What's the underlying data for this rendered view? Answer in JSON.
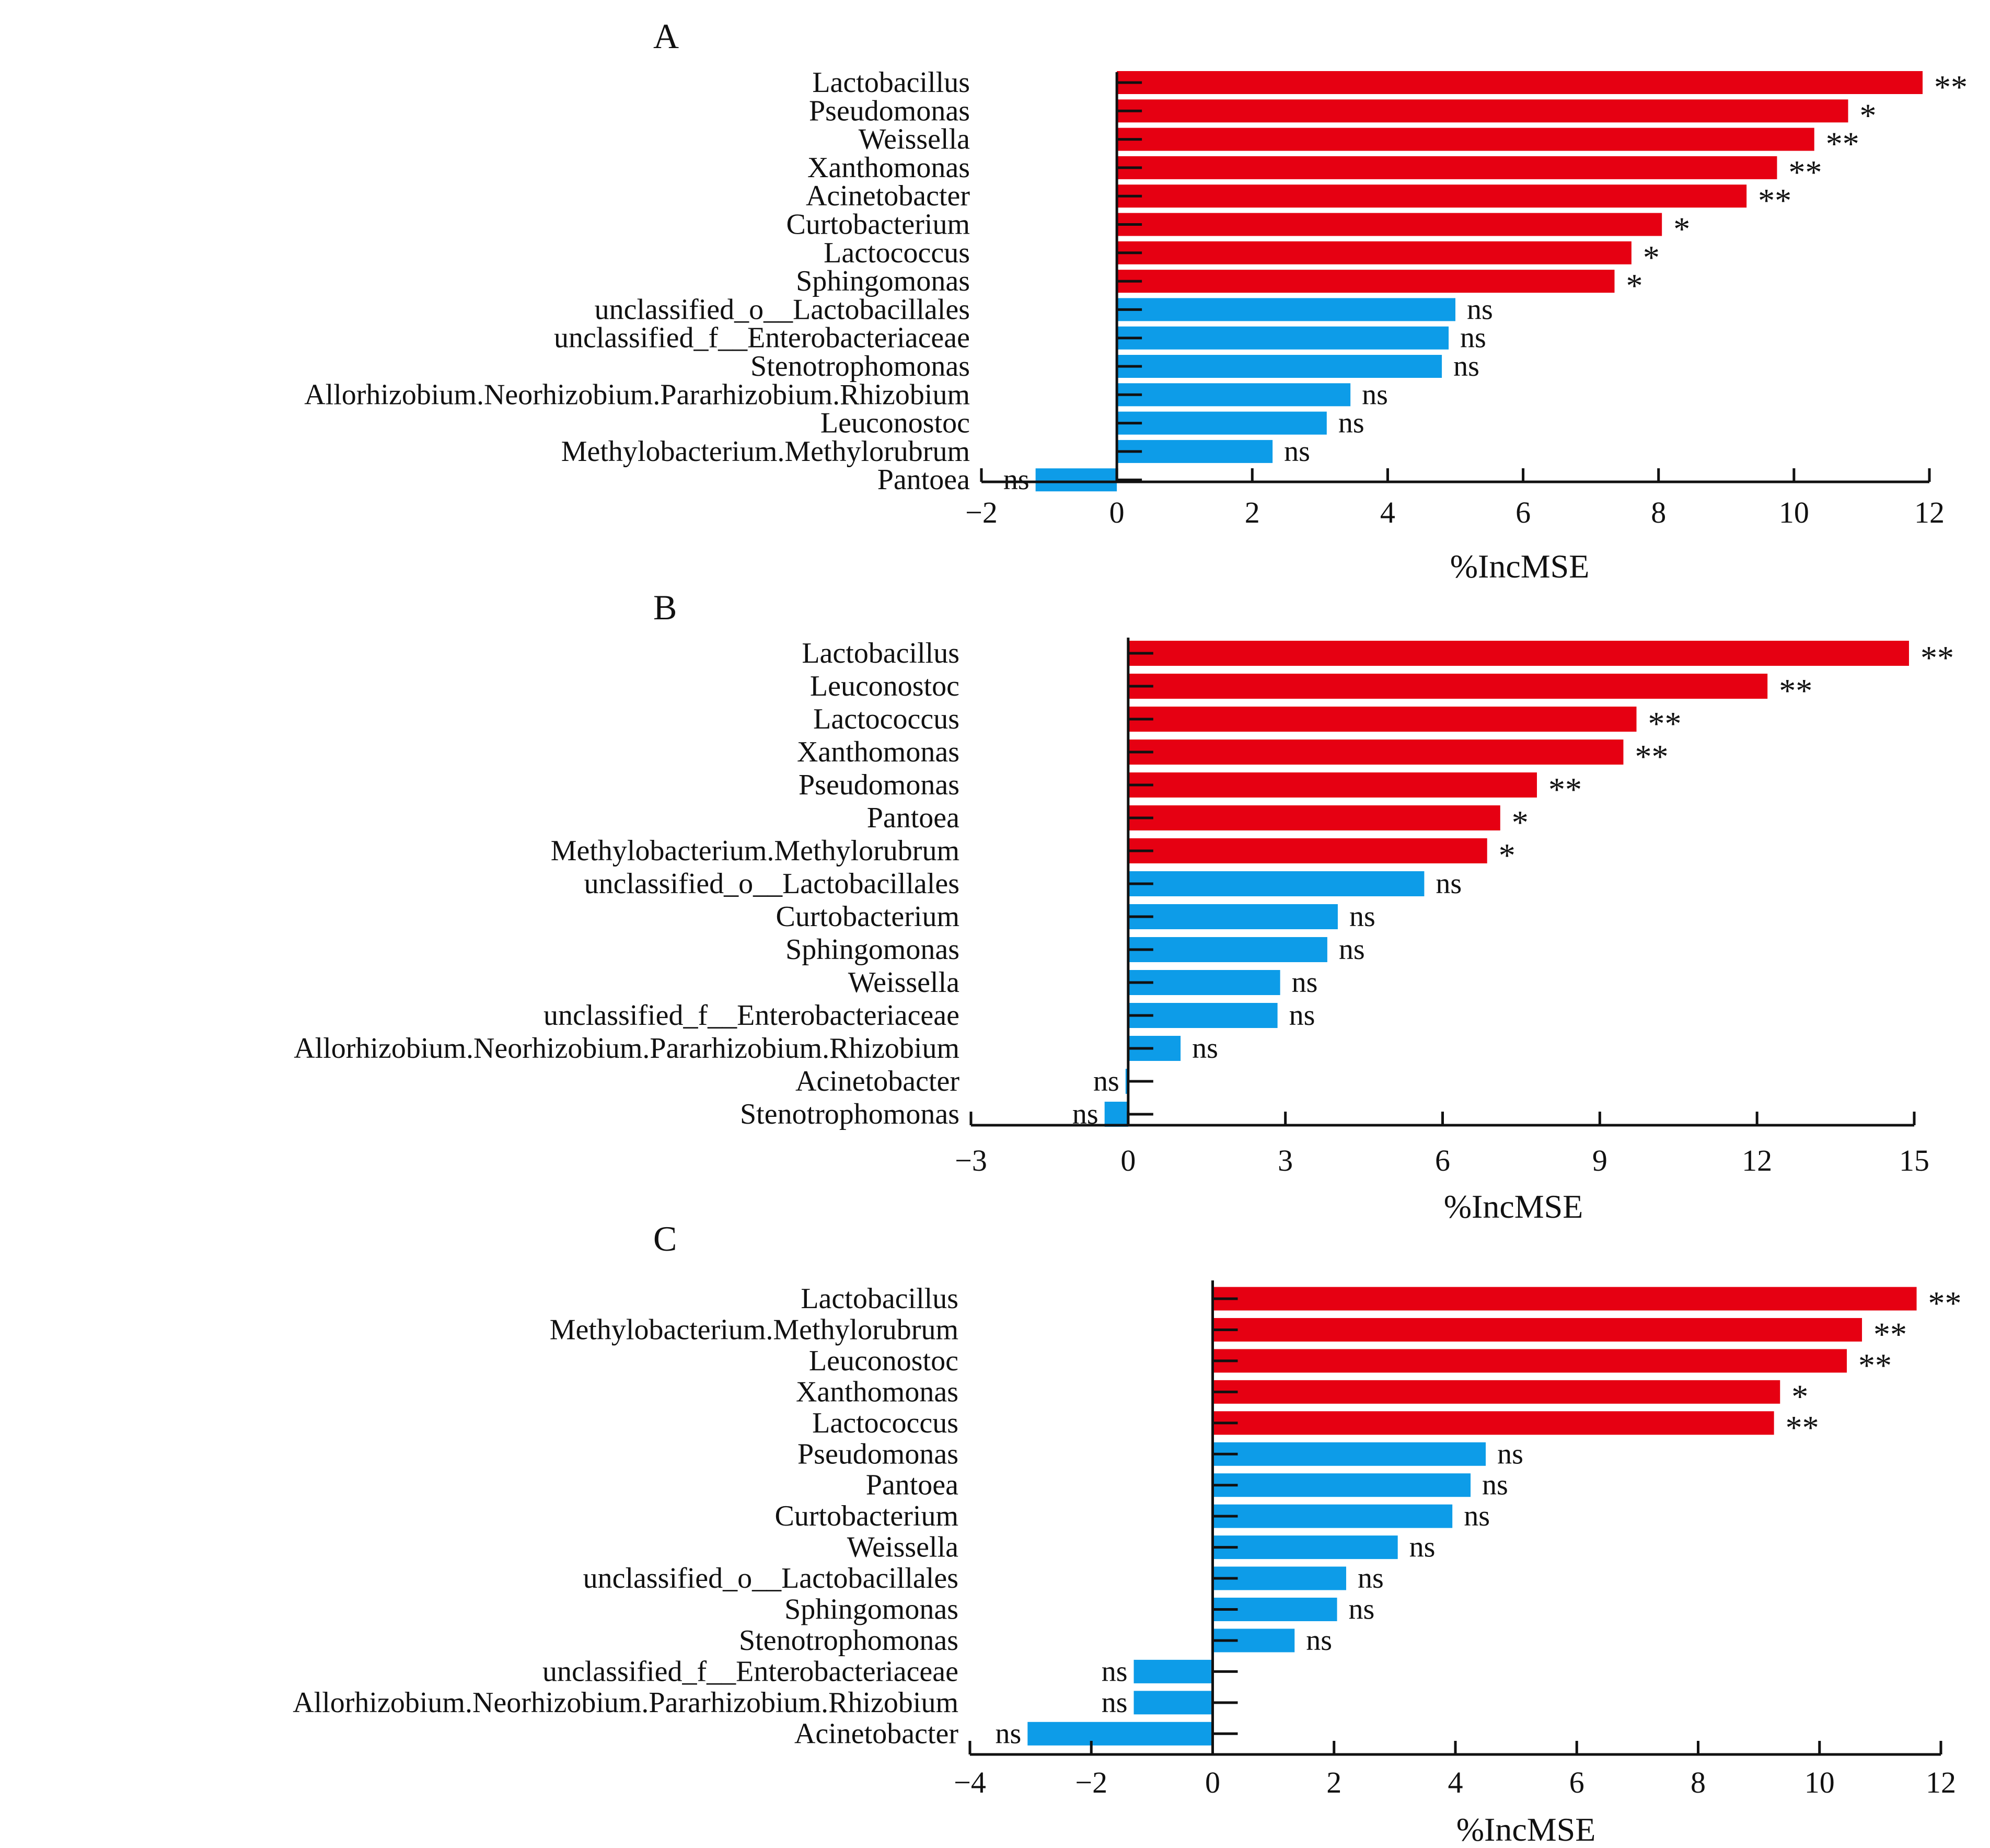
{
  "colors": {
    "significant": "#e60012",
    "nonsignificant": "#0d9ce8",
    "axis": "#111111"
  },
  "chart_data": [
    {
      "type": "bar",
      "orientation": "horizontal",
      "panel": "A",
      "xlabel": "%IncMSE",
      "xlim": [
        -2,
        12
      ],
      "xticks": [
        -2,
        0,
        2,
        4,
        6,
        8,
        10,
        12
      ],
      "xtick_labels": [
        "−2",
        "0",
        "2",
        "4",
        "6",
        "8",
        "10",
        "12"
      ],
      "categories": [
        "Lactobacillus",
        "Pseudomonas",
        "Weissella",
        "Xanthomonas",
        "Acinetobacter",
        "Curtobacterium",
        "Lactococcus",
        "Sphingomonas",
        "unclassified_o__Lactobacillales",
        "unclassified_f__Enterobacteriaceae",
        "Stenotrophomonas",
        "Allorhizobium.Neorhizobium.Pararhizobium.Rhizobium",
        "Leuconostoc",
        "Methylobacterium.Methylorubrum",
        "Pantoea"
      ],
      "values": [
        11.9,
        10.8,
        10.3,
        9.75,
        9.3,
        8.05,
        7.6,
        7.35,
        5.0,
        4.9,
        4.8,
        3.45,
        3.1,
        2.3,
        -1.2
      ],
      "significance": [
        "**",
        "*",
        "**",
        "**",
        "**",
        "*",
        "*",
        "*",
        "ns",
        "ns",
        "ns",
        "ns",
        "ns",
        "ns",
        "ns"
      ]
    },
    {
      "type": "bar",
      "orientation": "horizontal",
      "panel": "B",
      "xlabel": "%IncMSE",
      "xlim": [
        -3,
        15
      ],
      "xticks": [
        -3,
        0,
        3,
        6,
        9,
        12,
        15
      ],
      "xtick_labels": [
        "−3",
        "0",
        "3",
        "6",
        "9",
        "12",
        "15"
      ],
      "categories": [
        "Lactobacillus",
        "Leuconostoc",
        "Lactococcus",
        "Xanthomonas",
        "Pseudomonas",
        "Pantoea",
        "Methylobacterium.Methylorubrum",
        "unclassified_o__Lactobacillales",
        "Curtobacterium",
        "Sphingomonas",
        "Weissella",
        "unclassified_f__Enterobacteriaceae",
        "Allorhizobium.Neorhizobium.Pararhizobium.Rhizobium",
        "Acinetobacter",
        "Stenotrophomonas"
      ],
      "values": [
        14.9,
        12.2,
        9.7,
        9.45,
        7.8,
        7.1,
        6.85,
        5.65,
        4.0,
        3.8,
        2.9,
        2.85,
        1.0,
        -0.05,
        -0.45
      ],
      "significance": [
        "**",
        "**",
        "**",
        "**",
        "**",
        "*",
        "*",
        "ns",
        "ns",
        "ns",
        "ns",
        "ns",
        "ns",
        "ns",
        "ns"
      ]
    },
    {
      "type": "bar",
      "orientation": "horizontal",
      "panel": "C",
      "xlabel": "%IncMSE",
      "xlim": [
        -4,
        12
      ],
      "xticks": [
        -4,
        -2,
        0,
        2,
        4,
        6,
        8,
        10,
        12
      ],
      "xtick_labels": [
        "−4",
        "−2",
        "0",
        "2",
        "4",
        "6",
        "8",
        "10",
        "12"
      ],
      "categories": [
        "Lactobacillus",
        "Methylobacterium.Methylorubrum",
        "Leuconostoc",
        "Xanthomonas",
        "Lactococcus",
        "Pseudomonas",
        "Pantoea",
        "Curtobacterium",
        "Weissella",
        "unclassified_o__Lactobacillales",
        "Sphingomonas",
        "Stenotrophomonas",
        "unclassified_f__Enterobacteriaceae",
        "Allorhizobium.Neorhizobium.Pararhizobium.Rhizobium",
        "Acinetobacter"
      ],
      "values": [
        11.6,
        10.7,
        10.45,
        9.35,
        9.25,
        4.5,
        4.25,
        3.95,
        3.05,
        2.2,
        2.05,
        1.35,
        -1.3,
        -1.3,
        -3.05
      ],
      "significance": [
        "**",
        "**",
        "**",
        "*",
        "**",
        "ns",
        "ns",
        "ns",
        "ns",
        "ns",
        "ns",
        "ns",
        "ns",
        "ns",
        "ns"
      ]
    }
  ]
}
